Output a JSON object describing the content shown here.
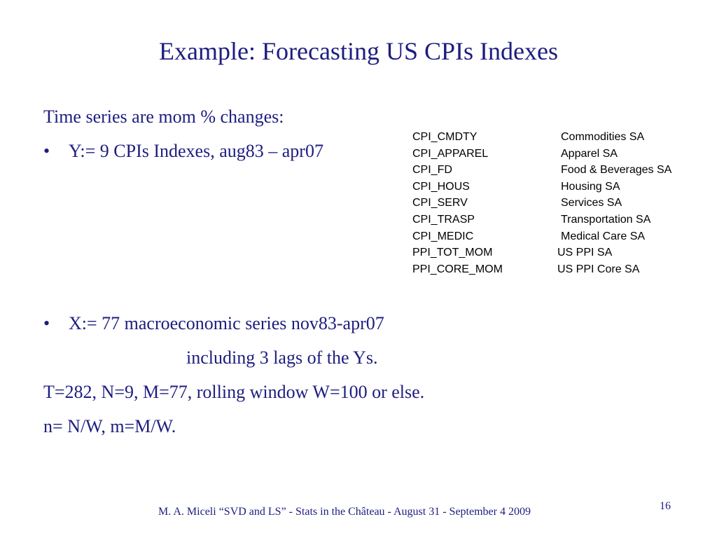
{
  "slide": {
    "title": "Example: Forecasting US CPIs Indexes",
    "intro": "Time series are mom % changes:",
    "bullet_y": "Y:= 9 CPIs Indexes, aug83 – apr07",
    "bullet_x": "X:= 77 macroeconomic series nov83-apr07",
    "bullet_x_cont": "including 3 lags of  the Ys.",
    "params": "T=282, N=9, M=77, rolling window W=100 or else.",
    "ratios": "n= N/W,  m=M/W.",
    "bullet_symbol": "•"
  },
  "cpi_list": [
    {
      "code": "CPI_CMDTY",
      "desc": "Commodities SA"
    },
    {
      "code": "CPI_APPAREL",
      "desc": "Apparel SA"
    },
    {
      "code": "CPI_FD",
      "desc": "Food & Beverages SA"
    },
    {
      "code": "CPI_HOUS",
      "desc": "Housing SA"
    },
    {
      "code": "CPI_SERV",
      "desc": "Services SA"
    },
    {
      "code": "CPI_TRASP",
      "desc": "Transportation SA"
    },
    {
      "code": "CPI_MEDIC",
      "desc": "Medical Care SA"
    },
    {
      "code": "PPI_TOT_MOM",
      "desc": "US PPI SA"
    },
    {
      "code": "PPI_CORE_MOM",
      "desc": "US PPI Core SA"
    }
  ],
  "footer": {
    "text": "M. A. Miceli  “SVD and LS”  - Stats in the Château -  August 31 - September 4 2009",
    "page_number": "16"
  },
  "colors": {
    "text": "#1d1d80",
    "table_text": "#000000",
    "background": "#ffffff"
  }
}
